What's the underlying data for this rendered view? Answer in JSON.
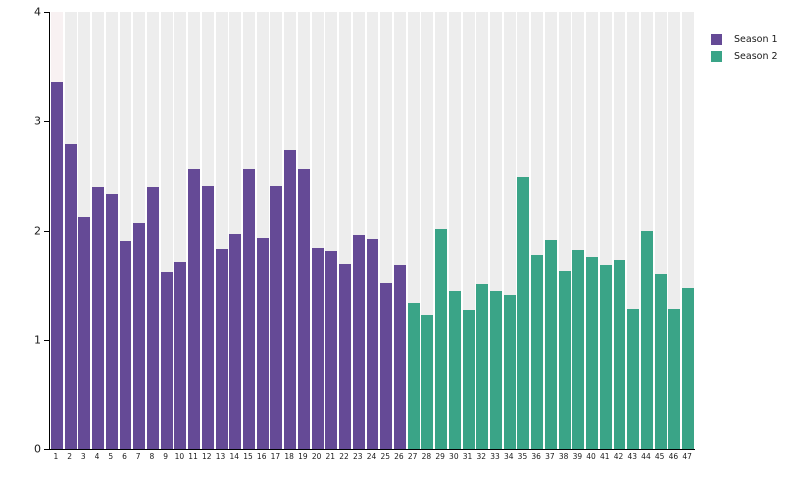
{
  "chart_data": {
    "type": "bar",
    "title": "",
    "xlabel": "",
    "ylabel": "",
    "ylim": [
      0,
      4
    ],
    "yticks": [
      "0",
      "1",
      "2",
      "3",
      "4"
    ],
    "categories": [
      "1",
      "2",
      "3",
      "4",
      "5",
      "6",
      "7",
      "8",
      "9",
      "10",
      "11",
      "12",
      "13",
      "14",
      "15",
      "16",
      "17",
      "18",
      "19",
      "20",
      "21",
      "22",
      "23",
      "24",
      "25",
      "26",
      "27",
      "28",
      "29",
      "30",
      "31",
      "32",
      "33",
      "34",
      "35",
      "36",
      "37",
      "38",
      "39",
      "40",
      "41",
      "42",
      "43",
      "44",
      "45",
      "46",
      "47"
    ],
    "grid": "vertical-category-bands",
    "legend_position": "top-right-outside",
    "colors": {
      "season1": "#654a96",
      "season2": "#3aa487",
      "band": "#ededed",
      "first_band": "#f8f1f2",
      "axis": "#000000",
      "tick_text": "#1a1a1a",
      "background": "#ffffff"
    },
    "series": [
      {
        "name": "Season 1",
        "color": "#654a96",
        "start_category": 1,
        "values": [
          3.36,
          2.79,
          2.12,
          2.4,
          2.33,
          1.9,
          2.07,
          2.4,
          1.62,
          1.71,
          2.56,
          2.41,
          1.83,
          1.97,
          2.56,
          1.93,
          2.41,
          2.74,
          2.56,
          1.84,
          1.81,
          1.69,
          1.96,
          1.92,
          1.52,
          1.68
        ]
      },
      {
        "name": "Season 2",
        "color": "#3aa487",
        "start_category": 27,
        "values": [
          1.34,
          1.23,
          2.01,
          1.45,
          1.27,
          1.51,
          1.45,
          1.41,
          2.49,
          1.78,
          1.91,
          1.63,
          1.82,
          1.76,
          1.68,
          1.73,
          1.28,
          2.0,
          1.6,
          1.28,
          1.47
        ]
      }
    ]
  }
}
